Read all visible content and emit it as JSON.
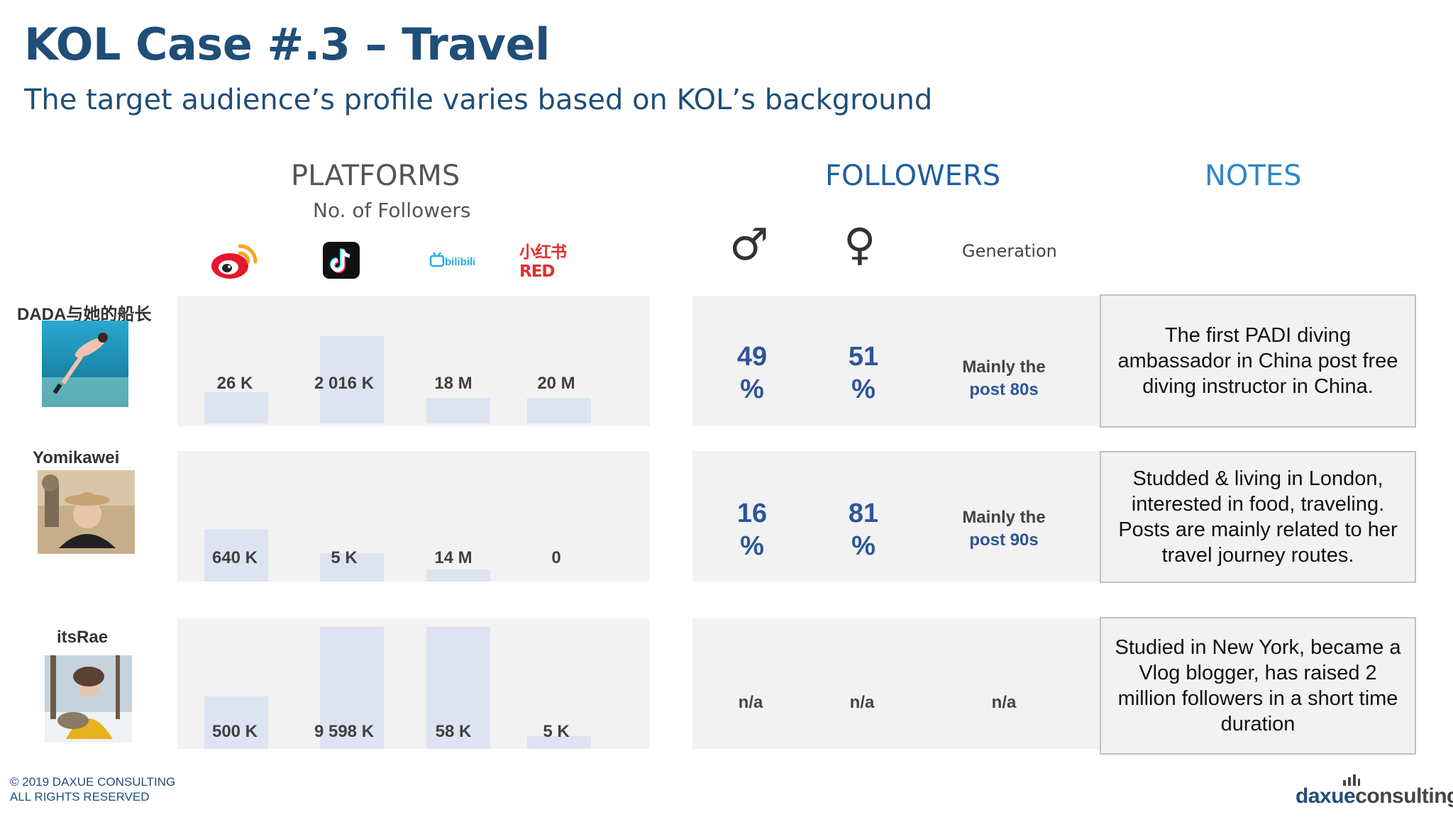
{
  "header": {
    "title": "KOL Case #.3 – Travel",
    "subtitle": "The target audience’s profile varies based on KOL’s background"
  },
  "columns": {
    "platforms": "PLATFORMS",
    "platforms_sub": "No. of Followers",
    "followers": "FOLLOWERS",
    "notes": "NOTES",
    "generation": "Generation"
  },
  "platform_icons": [
    "weibo-icon",
    "douyin-icon",
    "bilibili-icon",
    "red-icon"
  ],
  "platform_icon_text": {
    "bilibili": "bilibili",
    "red": "小红书RED"
  },
  "gender_icons": {
    "male": "♂",
    "female": "♀"
  },
  "kols": [
    {
      "name": "DADA与她的船长",
      "platform_labels": [
        "26 K",
        "2 016 K",
        "18 M",
        "20 M"
      ],
      "bar_fractions": [
        0.37,
        1.0,
        0.3,
        0.3
      ],
      "male_num": "49",
      "male_pct": "%",
      "female_num": "51",
      "female_pct": "%",
      "gen_line1": "Mainly the",
      "gen_line2": "post 80s",
      "note": "The first PADI diving ambassador in China post free diving instructor in China."
    },
    {
      "name": "Yomikawei",
      "platform_labels": [
        "640 K",
        "5 K",
        "14 M",
        "0"
      ],
      "bar_fractions": [
        0.75,
        0.35,
        0.17,
        0.0
      ],
      "male_num": "16",
      "male_pct": "%",
      "female_num": "81",
      "female_pct": "%",
      "gen_line1": "Mainly the",
      "gen_line2": "post 90s",
      "note": "Studded & living in London, interested in food, traveling. Posts are mainly related to her travel journey routes."
    },
    {
      "name": "itsRae",
      "platform_labels": [
        "500 K",
        "9 598 K",
        "58 K",
        "5 K"
      ],
      "bar_fractions": [
        0.43,
        1.0,
        1.0,
        0.1
      ],
      "male_na": "n/a",
      "female_na": "n/a",
      "gen_na": "n/a",
      "note": "Studied in New York, became a Vlog blogger, has raised 2 million followers in a short time duration"
    }
  ],
  "footer": {
    "line1": "© 2019 DAXUE CONSULTING",
    "line2": "ALL RIGHTS RESERVED",
    "brand_a": "daxue",
    "brand_b": "consulting"
  },
  "colors": {
    "title": "#1f4e79",
    "bar": "#dde3f1",
    "panel": "#f2f2f2",
    "pct": "#2e5597"
  }
}
